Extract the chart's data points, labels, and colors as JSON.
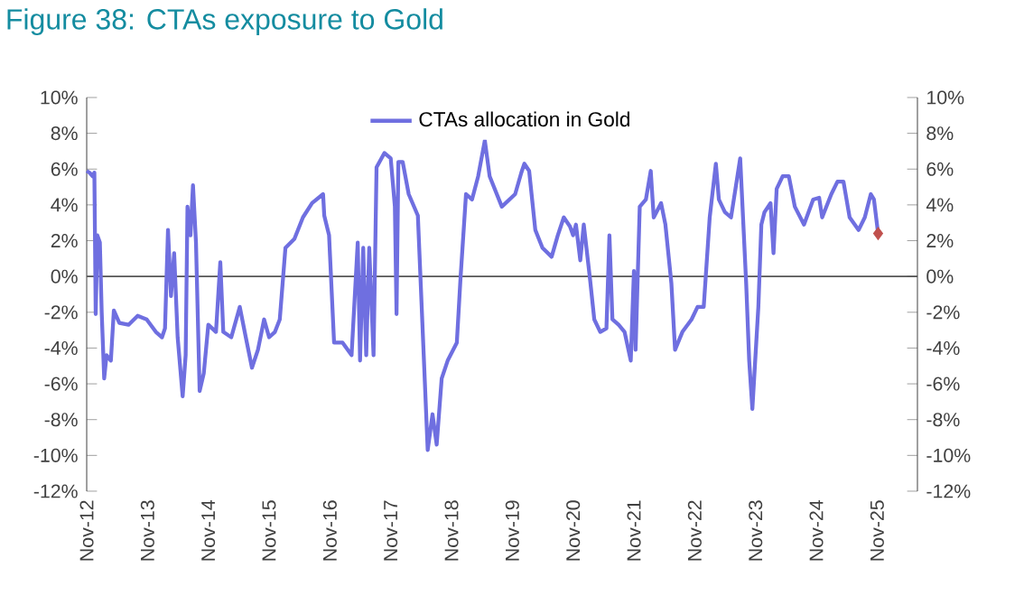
{
  "chart_data": {
    "type": "line",
    "title": "Figure 38: CTAs exposure to Gold",
    "xlim": [
      "2012-11-01",
      "2026-07-01"
    ],
    "xticks": [
      {
        "value": "2012-11-01",
        "label": "Nov-12"
      },
      {
        "value": "2013-11-01",
        "label": "Nov-13"
      },
      {
        "value": "2014-11-01",
        "label": "Nov-14"
      },
      {
        "value": "2015-11-01",
        "label": "Nov-15"
      },
      {
        "value": "2016-11-01",
        "label": "Nov-16"
      },
      {
        "value": "2017-11-01",
        "label": "Nov-17"
      },
      {
        "value": "2018-11-01",
        "label": "Nov-18"
      },
      {
        "value": "2019-11-01",
        "label": "Nov-19"
      },
      {
        "value": "2020-11-01",
        "label": "Nov-20"
      },
      {
        "value": "2021-11-01",
        "label": "Nov-21"
      },
      {
        "value": "2022-11-01",
        "label": "Nov-22"
      },
      {
        "value": "2023-11-01",
        "label": "Nov-23"
      },
      {
        "value": "2024-11-01",
        "label": "Nov-24"
      },
      {
        "value": "2025-11-01",
        "label": "Nov-25"
      }
    ],
    "ylim": [
      -12,
      10
    ],
    "yticks": [
      {
        "value": -12,
        "label": "-12%"
      },
      {
        "value": -10,
        "label": "-10%"
      },
      {
        "value": -8,
        "label": "-8%"
      },
      {
        "value": -6,
        "label": "-6%"
      },
      {
        "value": -4,
        "label": "-4%"
      },
      {
        "value": -2,
        "label": "-2%"
      },
      {
        "value": 0,
        "label": "0%"
      },
      {
        "value": 2,
        "label": "2%"
      },
      {
        "value": 4,
        "label": "4%"
      },
      {
        "value": 6,
        "label": "6%"
      },
      {
        "value": 8,
        "label": "8%"
      },
      {
        "value": 10,
        "label": "10%"
      }
    ],
    "y2lim": [
      -12,
      10
    ],
    "y2ticks": [
      {
        "value": -12,
        "label": "-12%"
      },
      {
        "value": -10,
        "label": "-10%"
      },
      {
        "value": -8,
        "label": "-8%"
      },
      {
        "value": -6,
        "label": "-6%"
      },
      {
        "value": -4,
        "label": "-4%"
      },
      {
        "value": -2,
        "label": "-2%"
      },
      {
        "value": 0,
        "label": "0%"
      },
      {
        "value": 2,
        "label": "2%"
      },
      {
        "value": 4,
        "label": "4%"
      },
      {
        "value": 6,
        "label": "6%"
      },
      {
        "value": 8,
        "label": "8%"
      },
      {
        "value": 10,
        "label": "10%"
      }
    ],
    "legend": "top",
    "ref_lines": [
      {
        "axis": "y",
        "value": 0,
        "color": "#555555"
      }
    ],
    "series": [
      {
        "name": "CTAs allocation in Gold",
        "color": "#6f6fe0",
        "x": [
          "2012-11-01",
          "2012-11-18",
          "2012-12-06",
          "2012-12-17",
          "2012-12-25",
          "2013-01-04",
          "2013-01-19",
          "2013-01-30",
          "2013-02-14",
          "2013-02-28",
          "2013-03-26",
          "2013-04-13",
          "2013-05-16",
          "2013-07-10",
          "2013-09-03",
          "2013-10-27",
          "2013-12-21",
          "2014-01-27",
          "2014-02-14",
          "2014-03-04",
          "2014-03-22",
          "2014-04-10",
          "2014-05-01",
          "2014-05-31",
          "2014-06-18",
          "2014-06-29",
          "2014-07-17",
          "2014-08-01",
          "2014-08-19",
          "2014-09-10",
          "2014-10-05",
          "2014-11-01",
          "2014-12-17",
          "2015-01-12",
          "2015-01-30",
          "2015-03-19",
          "2015-05-09",
          "2015-06-14",
          "2015-07-21",
          "2015-08-26",
          "2015-10-02",
          "2015-11-01",
          "2015-12-06",
          "2016-01-04",
          "2016-02-07",
          "2016-04-02",
          "2016-05-23",
          "2016-07-17",
          "2016-09-21",
          "2016-09-28",
          "2016-10-27",
          "2016-11-26",
          "2017-01-16",
          "2017-03-11",
          "2017-04-17",
          "2017-05-01",
          "2017-05-20",
          "2017-06-07",
          "2017-06-25",
          "2017-07-21",
          "2017-08-08",
          "2017-09-24",
          "2017-11-01",
          "2017-11-26",
          "2017-12-06",
          "2017-12-17",
          "2018-01-12",
          "2018-02-17",
          "2018-04-13",
          "2018-06-11",
          "2018-07-10",
          "2018-08-04",
          "2018-09-03",
          "2018-10-09",
          "2018-12-03",
          "2018-12-25",
          "2019-01-27",
          "2019-03-04",
          "2019-04-10",
          "2019-05-20",
          "2019-06-18",
          "2019-08-30",
          "2019-11-18",
          "2019-12-25",
          "2020-01-12",
          "2020-02-10",
          "2020-03-19",
          "2020-05-01",
          "2020-06-25",
          "2020-08-01",
          "2020-09-06",
          "2020-10-13",
          "2020-11-01",
          "2020-11-18",
          "2020-12-14",
          "2021-01-04",
          "2021-02-10",
          "2021-03-08",
          "2021-04-13",
          "2021-05-20",
          "2021-06-07",
          "2021-06-25",
          "2021-08-01",
          "2021-09-06",
          "2021-10-13",
          "2021-11-01",
          "2021-11-11",
          "2021-12-06",
          "2022-01-12",
          "2022-02-10",
          "2022-02-28",
          "2022-04-13",
          "2022-05-09",
          "2022-06-14",
          "2022-07-06",
          "2022-08-19",
          "2022-10-13",
          "2022-11-18",
          "2022-12-25",
          "2023-01-30",
          "2023-03-08",
          "2023-03-26",
          "2023-05-01",
          "2023-06-07",
          "2023-08-01",
          "2023-09-06",
          "2023-09-24",
          "2023-10-13",
          "2023-11-01",
          "2023-11-18",
          "2023-12-06",
          "2023-12-25",
          "2024-01-30",
          "2024-02-17",
          "2024-03-08",
          "2024-04-13",
          "2024-05-20",
          "2024-06-25",
          "2024-08-19",
          "2024-10-13",
          "2024-11-18",
          "2024-12-06",
          "2025-01-30",
          "2025-03-08",
          "2025-04-13",
          "2025-05-20",
          "2025-07-13",
          "2025-08-19",
          "2025-09-24",
          "2025-10-13",
          "2025-11-07"
        ],
        "values": [
          5.9,
          5.8,
          5.6,
          5.8,
          -2.1,
          2.3,
          1.9,
          -2,
          -5.7,
          -4.4,
          -4.7,
          -1.9,
          -2.6,
          -2.7,
          -2.2,
          -2.4,
          -3.1,
          -3.4,
          -2.9,
          2.6,
          -1.1,
          1.3,
          -3.4,
          -6.7,
          -4.4,
          3.9,
          2.3,
          5.1,
          1.9,
          -6.4,
          -5.4,
          -2.7,
          -3.1,
          0.8,
          -3.1,
          -3.4,
          -1.7,
          -3.4,
          -5.1,
          -4.1,
          -2.4,
          -3.4,
          -3.1,
          -2.4,
          1.6,
          2.1,
          3.3,
          4.1,
          4.6,
          3.4,
          2.3,
          -3.7,
          -3.7,
          -4.4,
          1.9,
          -4.7,
          1.6,
          -4.4,
          1.6,
          -4.4,
          6.1,
          6.9,
          6.6,
          3.9,
          -2.1,
          6.4,
          6.4,
          4.6,
          3.4,
          -9.7,
          -7.7,
          -9.4,
          -5.7,
          -4.7,
          -3.7,
          -0.1,
          4.6,
          4.3,
          5.6,
          7.6,
          5.6,
          3.9,
          4.6,
          5.8,
          6.3,
          5.9,
          2.6,
          1.6,
          1.1,
          2.3,
          3.3,
          2.8,
          2.3,
          2.9,
          0.9,
          2.9,
          -0.1,
          -2.4,
          -3.1,
          -2.9,
          2.3,
          -2.4,
          -2.7,
          -3.1,
          -4.7,
          0.3,
          -4.1,
          3.9,
          4.3,
          5.9,
          3.3,
          4.1,
          2.9,
          -0.4,
          -4.1,
          -3.1,
          -2.4,
          -1.7,
          -1.7,
          3.3,
          6.3,
          4.3,
          3.6,
          3.3,
          6.6,
          -0.4,
          -4.7,
          -7.4,
          -4.4,
          -1.7,
          2.9,
          3.6,
          4.1,
          1.3,
          4.9,
          5.6,
          5.6,
          3.9,
          2.9,
          4.3,
          4.4,
          3.3,
          4.6,
          5.3,
          5.3,
          3.3,
          2.6,
          3.3,
          4.6,
          4.3,
          2.4
        ]
      },
      {
        "type": "scatter",
        "color": "#c0504d",
        "marker": "diamond",
        "x": [
          "2025-11-07"
        ],
        "values": [
          2.4
        ]
      }
    ]
  }
}
